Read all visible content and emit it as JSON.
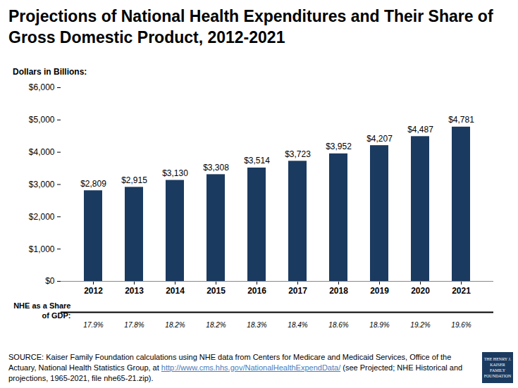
{
  "chart_data": {
    "type": "bar",
    "title": "Projections of National Health Expenditures and Their Share of Gross Domestic Product, 2012-2021",
    "subtitle": "Dollars in Billions:",
    "categories": [
      "2012",
      "2013",
      "2014",
      "2015",
      "2016",
      "2017",
      "2018",
      "2019",
      "2020",
      "2021"
    ],
    "values": [
      2809,
      2915,
      3130,
      3308,
      3514,
      3723,
      3952,
      4207,
      4487,
      4781
    ],
    "value_labels": [
      "$2,809",
      "$2,915",
      "$3,130",
      "$3,308",
      "$3,514",
      "$3,723",
      "$3,952",
      "$4,207",
      "$4,487",
      "$4,781"
    ],
    "data_labels": true,
    "color": "#1b3a5f",
    "ylim": [
      0,
      6000
    ],
    "yticks": [
      {
        "value": 0,
        "label": "$0"
      },
      {
        "value": 1000,
        "label": "$1,000"
      },
      {
        "value": 2000,
        "label": "$2,000"
      },
      {
        "value": 3000,
        "label": "$3,000"
      },
      {
        "value": 4000,
        "label": "$4,000"
      },
      {
        "value": 5000,
        "label": "$5,000"
      },
      {
        "value": 6000,
        "label": "$6,000"
      }
    ],
    "grid": false,
    "gdp_share": {
      "label": "NHE as a Share\nof GDP:",
      "values": [
        17.9,
        17.8,
        18.2,
        18.2,
        18.3,
        18.4,
        18.6,
        18.9,
        19.2,
        19.6
      ],
      "value_labels": [
        "17.9%",
        "17.8%",
        "18.2%",
        "18.2%",
        "18.3%",
        "18.4%",
        "18.6%",
        "18.9%",
        "19.2%",
        "19.6%"
      ]
    },
    "source": {
      "prefix": "SOURCE: Kaiser Family Foundation calculations using NHE data from Centers for Medicare and Medicaid Services, Office of the Actuary, National Health Statistics Group, at ",
      "url": "http://www.cms.hhs.gov/NationalHealthExpendData/",
      "suffix": " (see Projected; NHE Historical and projections, 1965-2021, file nhe65-21.zip)."
    },
    "logo": "THE HENRY J. KAISER FAMILY FOUNDATION"
  }
}
